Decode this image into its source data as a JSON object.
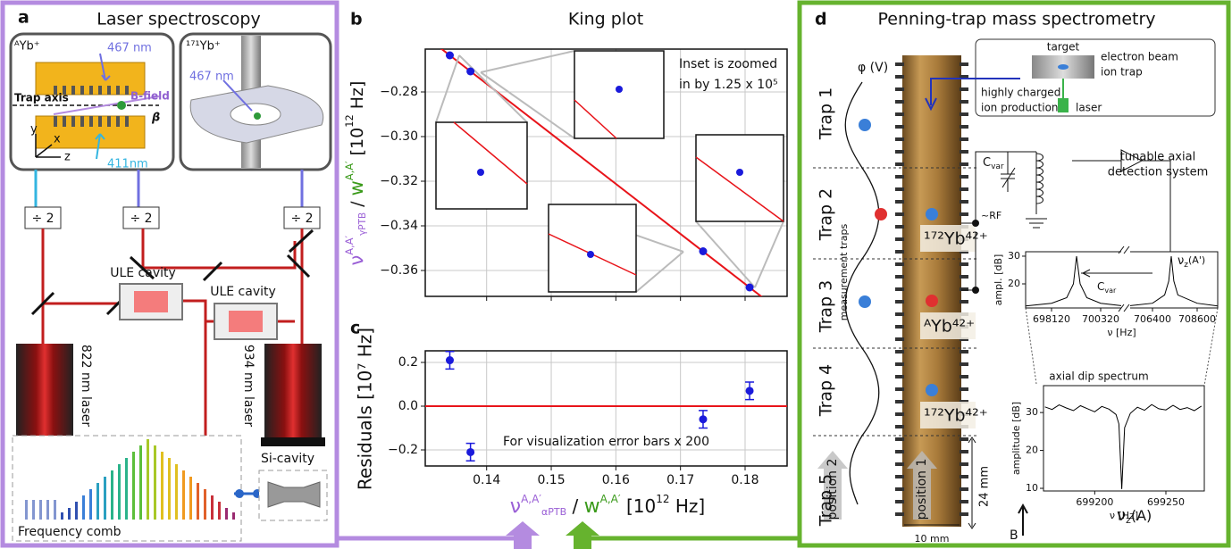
{
  "figure": {
    "panel_labels": [
      "a",
      "b",
      "c",
      "d"
    ]
  },
  "panel_a": {
    "title": "Laser spectroscopy",
    "ion_left": "ᴬYb⁺",
    "ion_right": "¹⁷¹Yb⁺",
    "wavelength_top": "467 nm",
    "wavelength_bottom": "411nm",
    "wavelength_right": "467 nm",
    "b_field": "B-field",
    "trap_axis": "Trap axis",
    "beta": "β",
    "axes": [
      "y",
      "x",
      "z"
    ],
    "dividers": [
      "÷ 2",
      "÷ 2",
      "÷ 2"
    ],
    "cavities": [
      "ULE cavity",
      "ULE cavity"
    ],
    "lasers": [
      "822 nm laser",
      "934 nm laser"
    ],
    "comb": "Frequency comb",
    "si_cavity": "Si-cavity"
  },
  "panel_d": {
    "title": "Penning-trap mass spectrometry",
    "potential": "φ (V)",
    "traps": [
      "Trap 1",
      "Trap 2",
      "Trap 3",
      "Trap 4",
      "Trap 5"
    ],
    "measurement": "measurement traps",
    "ions": [
      "¹⁷²Yb⁴²⁺",
      "ᴬYb⁴²⁺",
      "¹⁷²Yb⁴²⁺"
    ],
    "rf": "~RF",
    "target": "target",
    "ebit": [
      "electron beam",
      "ion trap"
    ],
    "hci": [
      "highly charged",
      "ion production"
    ],
    "laser": "laser",
    "cvar": [
      "C",
      "var"
    ],
    "detection": [
      "tunable axial",
      "detection system"
    ],
    "positions": [
      "position 1",
      "position 2"
    ],
    "length": "24 mm",
    "width": "10 mm",
    "field": "B"
  },
  "chart_data": [
    {
      "type": "scatter",
      "title": "King plot",
      "ylabel": {
        "symbol": "ν",
        "sup": "A,A′",
        "sub": "γPTB",
        "sep": " / ",
        "symbol2": "w",
        "sup2": "A,A′",
        "unit": " [10",
        "unit_exp": "12",
        "unit_end": " Hz]"
      },
      "x": [
        0.1343,
        0.1375,
        0.1735,
        0.1807
      ],
      "values": [
        -0.2636,
        -0.2708,
        -0.3514,
        -0.3676
      ],
      "color": "#1a1adb",
      "fit_color": "#e8141a",
      "xlim": [
        0.1305,
        0.1865
      ],
      "xticks": [
        0.14,
        0.15,
        0.16,
        0.17,
        0.18
      ],
      "ylim": [
        -0.3716,
        -0.2608
      ],
      "yticks": [
        {
          "value": -0.28,
          "label": "−0.28"
        },
        {
          "value": -0.3,
          "label": "−0.30"
        },
        {
          "value": -0.32,
          "label": "−0.32"
        },
        {
          "value": -0.34,
          "label": "−0.34"
        },
        {
          "value": -0.36,
          "label": "−0.36"
        }
      ],
      "grid": true,
      "annotation": [
        "Inset is zoomed",
        "in by 1.25 x 10⁵"
      ]
    },
    {
      "type": "errorbar",
      "ylabel": "Residuals [10⁷ Hz]",
      "xlabel": {
        "symbol": "ν",
        "sup": "A,A′",
        "sub": "αPTB",
        "sep": " / ",
        "symbol2": "w",
        "sup2": "A,A′",
        "unit": " [10",
        "unit_exp": "12",
        "unit_end": " Hz]"
      },
      "x": [
        0.1343,
        0.1375,
        0.1735,
        0.1807
      ],
      "values": [
        0.21,
        -0.21,
        -0.06,
        0.07
      ],
      "errors": [
        0.04,
        0.04,
        0.04,
        0.04
      ],
      "color": "#1a1adb",
      "reference_line": 0,
      "reference_color": "#e8141a",
      "xlim": [
        0.1305,
        0.1865
      ],
      "xticks": [
        0.14,
        0.15,
        0.16,
        0.17,
        0.18
      ],
      "ylim": [
        -0.2735,
        0.253
      ],
      "yticks": [
        0.2,
        {
          "value": 0,
          "label": "0.0"
        },
        {
          "value": -0.2,
          "label": "−0.2"
        }
      ],
      "grid": true,
      "annotation": "For visualization error bars x 200"
    },
    {
      "type": "line",
      "xlabel": "ν [Hz]",
      "ylabel": "ampl. [dB]",
      "xlim": [
        [
          696960,
          701360
        ],
        [
          705168,
          709612
        ]
      ],
      "xticks": [
        698120,
        700320,
        706400,
        708600
      ],
      "ylim": [
        11.3,
        31.6
      ],
      "yticks": [
        20,
        30
      ],
      "annotation": [
        "C",
        "var"
      ],
      "peak_label": [
        "ν",
        "z",
        "(A')"
      ],
      "series": [
        {
          "color": "#000000",
          "x": [
            696960,
            698120,
            698800,
            699100,
            699240,
            699400,
            699700,
            700320,
            701360
          ],
          "values": [
            12,
            13,
            15,
            20,
            30,
            20,
            15,
            13,
            12
          ]
        },
        {
          "color": "#000000",
          "x": [
            705168,
            706400,
            707000,
            707200,
            707324,
            707450,
            707650,
            708600,
            709612
          ],
          "values": [
            12,
            13,
            16,
            21,
            30,
            21,
            16,
            13,
            12
          ]
        }
      ]
    },
    {
      "type": "line",
      "title": "axial dip spectrum",
      "xlabel": "ν [Hz]",
      "ylabel": "amplitude [dB]",
      "xlim": [
        699164,
        699277
      ],
      "xticks": [
        699200,
        699250
      ],
      "ylim": [
        9.3,
        37.1
      ],
      "yticks": [
        10,
        20,
        30
      ],
      "peak_label": [
        "ν",
        "z",
        "(A)"
      ],
      "series": [
        {
          "color": "#000000",
          "x": [
            699165,
            699170,
            699175,
            699180,
            699185,
            699190,
            699195,
            699200,
            699205,
            699210,
            699215,
            699217,
            699219,
            699221,
            699225,
            699230,
            699235,
            699240,
            699245,
            699250,
            699255,
            699260,
            699265,
            699270,
            699275
          ],
          "values": [
            31.5,
            30.8,
            32.0,
            31.2,
            30.5,
            31.8,
            31.0,
            30.2,
            31.6,
            30.9,
            29.5,
            27.0,
            9.8,
            26.0,
            29.8,
            31.4,
            30.6,
            32.1,
            31.0,
            30.7,
            31.9,
            30.8,
            31.3,
            30.5,
            31.7
          ]
        }
      ]
    }
  ]
}
